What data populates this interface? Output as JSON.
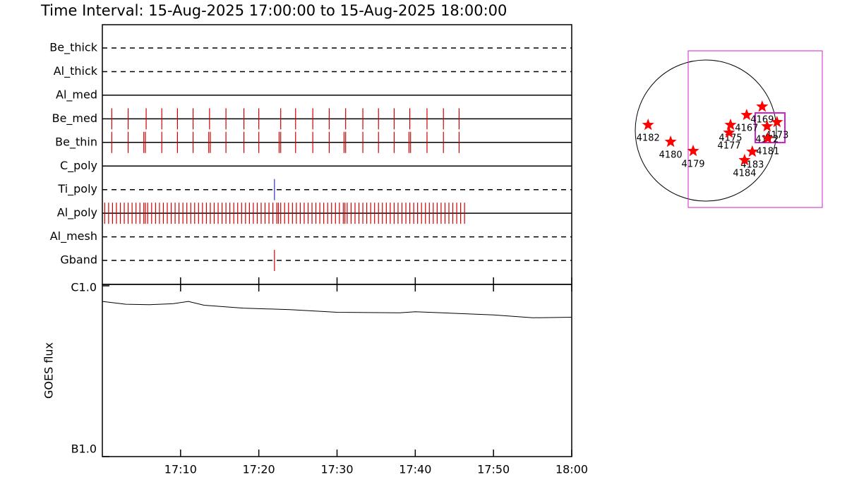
{
  "title": "Time Interval: 15-Aug-2025 17:00:00 to 15-Aug-2025 18:00:00",
  "chart_data": [
    {
      "type": "timeline",
      "xlim": [
        0,
        60
      ],
      "rows": [
        {
          "name": "Be_thick",
          "line": "dashed",
          "color": "#d00000",
          "times": []
        },
        {
          "name": "Al_thick",
          "line": "dashed",
          "color": "#d00000",
          "times": []
        },
        {
          "name": "Al_med",
          "line": "solid",
          "color": "#d00000",
          "times": []
        },
        {
          "name": "Be_med",
          "line": "solid",
          "color": "#d00000",
          "times": [
            1.2,
            3.3,
            5.6,
            7.6,
            9.6,
            11.6,
            13.7,
            15.8,
            18.1,
            20.0,
            22.8,
            24.7,
            26.9,
            29.0,
            31.1,
            33.3,
            35.3,
            37.3,
            39.3,
            41.5,
            43.6,
            45.6
          ]
        },
        {
          "name": "Be_thin",
          "line": "solid",
          "color": "#d00000",
          "times": [
            1.2,
            3.3,
            5.3,
            5.5,
            7.6,
            9.6,
            11.6,
            13.6,
            13.8,
            15.8,
            18.1,
            20.0,
            22.6,
            22.8,
            24.7,
            26.9,
            29.0,
            30.9,
            31.1,
            33.3,
            35.3,
            37.3,
            39.2,
            39.4,
            41.5,
            43.6,
            45.6
          ]
        },
        {
          "name": "C_poly",
          "line": "solid",
          "color": "#d00000",
          "times": []
        },
        {
          "name": "Ti_poly",
          "line": "dashed",
          "color": "#3030c0",
          "times": [
            22.0
          ]
        },
        {
          "name": "Al_poly",
          "line": "solid",
          "color": "#d00000",
          "times": [
            0.3,
            0.8,
            1.3,
            1.8,
            2.3,
            2.8,
            3.3,
            3.8,
            4.3,
            4.8,
            5.3,
            5.5,
            5.8,
            6.3,
            6.8,
            7.3,
            7.8,
            8.3,
            8.8,
            9.3,
            9.8,
            10.3,
            10.8,
            11.3,
            11.8,
            12.3,
            12.8,
            13.3,
            13.8,
            14.3,
            14.8,
            15.3,
            15.8,
            16.3,
            16.8,
            17.3,
            17.8,
            18.3,
            18.8,
            19.3,
            19.8,
            20.3,
            20.8,
            21.3,
            21.8,
            22.3,
            22.5,
            22.8,
            23.3,
            23.8,
            24.3,
            24.8,
            25.3,
            25.8,
            26.3,
            26.8,
            27.3,
            27.8,
            28.3,
            28.8,
            29.3,
            29.8,
            30.3,
            30.8,
            31.0,
            31.3,
            31.8,
            32.3,
            32.8,
            33.3,
            33.8,
            34.3,
            34.8,
            35.3,
            35.8,
            36.3,
            36.8,
            37.3,
            37.8,
            38.3,
            38.8,
            39.3,
            39.8,
            40.3,
            40.8,
            41.3,
            41.8,
            42.3,
            42.8,
            43.3,
            43.8,
            44.3,
            44.8,
            45.3,
            45.8,
            46.3
          ]
        },
        {
          "name": "Al_mesh",
          "line": "dashed",
          "color": "#d00000",
          "times": []
        },
        {
          "name": "Gband",
          "line": "dashed",
          "color": "#d00000",
          "times": [
            22.0
          ]
        }
      ]
    },
    {
      "type": "line",
      "ylabel": "GOES flux",
      "log_scale": true,
      "color": "#000000",
      "xlim": [
        0,
        60
      ],
      "xticks": [
        {
          "value": 10,
          "label": "17:10"
        },
        {
          "value": 20,
          "label": "17:20"
        },
        {
          "value": 30,
          "label": "17:30"
        },
        {
          "value": 40,
          "label": "17:40"
        },
        {
          "value": 50,
          "label": "17:50"
        },
        {
          "value": 60,
          "label": "18:00"
        }
      ],
      "ylim": [
        1e-07,
        1e-06
      ],
      "yticks": [
        {
          "value": 1e-06,
          "label": "C1.0"
        },
        {
          "value": 1e-07,
          "label": "B1.0"
        }
      ],
      "x": [
        0,
        3,
        6,
        9,
        11,
        13,
        18,
        24,
        30,
        38,
        40,
        45,
        50,
        55,
        60
      ],
      "values": [
        8.1e-07,
        7.8e-07,
        7.75e-07,
        7.85e-07,
        8.1e-07,
        7.7e-07,
        7.4e-07,
        7.25e-07,
        7e-07,
        6.95e-07,
        7.05e-07,
        6.9e-07,
        6.75e-07,
        6.5e-07,
        6.55e-07
      ]
    },
    {
      "type": "scatter",
      "color": "#ff0000",
      "xlim": [
        -1000,
        1000
      ],
      "ylim": [
        -1000,
        1000
      ],
      "labels": [
        "4182",
        "4180",
        "4179",
        "4175",
        "4177",
        "4167",
        "4169",
        "4172",
        "4173",
        "4183",
        "4184",
        "4181"
      ],
      "x": [
        -779,
        -475,
        -171,
        333,
        314,
        551,
        760,
        827,
        960,
        627,
        523,
        836
      ],
      "values": [
        76,
        -152,
        -276,
        76,
        -29,
        209,
        323,
        57,
        114,
        -285,
        -399,
        -105
      ]
    }
  ]
}
